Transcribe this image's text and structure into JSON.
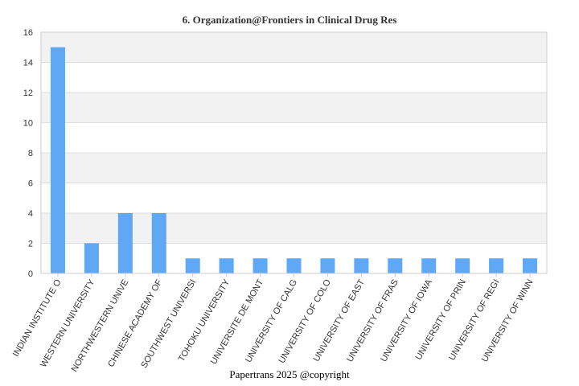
{
  "chart_data": {
    "type": "bar",
    "title": "6. Organization@Frontiers in Clinical Drug Res",
    "xlabel": "",
    "ylabel": "",
    "categories": [
      "INDIAN INSTITUTE O",
      "WESTERN UNIVERSITY",
      "NORTHWESTERN UNIVE",
      "CHINESE ACADEMY OF",
      "SOUTHWEST UNIVERSI",
      "TOHOKU UNIVERSITY",
      "UNIVERSITE DE MONT",
      "UNIVERSITY OF CALG",
      "UNIVERSITY OF COLO",
      "UNIVERSITY OF EAST",
      "UNIVERSITY OF FRAS",
      "UNIVERSITY OF IOWA",
      "UNIVERSITY OF PRIN",
      "UNIVERSITY OF REGI",
      "UNIVERSITY OF WINN"
    ],
    "values": [
      15,
      2,
      4,
      4,
      1,
      1,
      1,
      1,
      1,
      1,
      1,
      1,
      1,
      1,
      1
    ],
    "ylim": [
      0,
      16
    ],
    "yticks": [
      0,
      2,
      4,
      6,
      8,
      10,
      12,
      14,
      16
    ],
    "grid": true,
    "bar_color": "#5fa8f5",
    "band_color": "#f2f2f2"
  },
  "footer": "Papertrans 2025 @copyright"
}
